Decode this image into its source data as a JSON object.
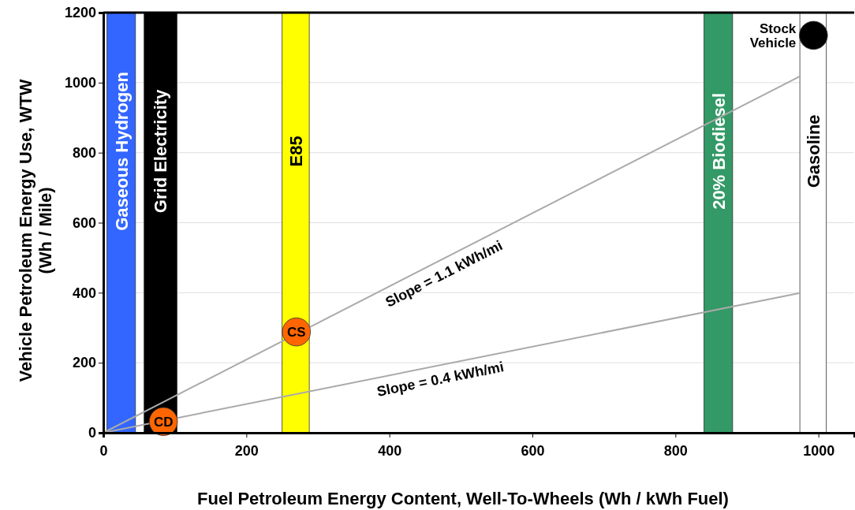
{
  "chart_data": {
    "type": "scatter",
    "xlabel": "Fuel Petroleum Energy Content, Well-To-Wheels (Wh / kWh Fuel)",
    "ylabel": "Vehicle Petroleum Energy Use, WTW\n(Wh / Mile)",
    "xlim": [
      0,
      1050
    ],
    "xticks": [
      0,
      200,
      400,
      600,
      800,
      1000
    ],
    "ylim": [
      0,
      1200
    ],
    "yticks": [
      0,
      200,
      400,
      600,
      800,
      1000,
      1200
    ],
    "grid": "y",
    "bands": [
      {
        "axis": "x",
        "from": 5,
        "to": 45,
        "label": "Gaseous Hydrogen",
        "color": "#3366ff"
      },
      {
        "axis": "x",
        "from": 57,
        "to": 103,
        "label": "Grid Electricity",
        "color": "#000000"
      },
      {
        "axis": "x",
        "from": 250,
        "to": 288,
        "label": "E85",
        "color": "#ffff00"
      },
      {
        "axis": "x",
        "from": 840,
        "to": 880,
        "label": "20% Biodiesel",
        "color": "#339966"
      },
      {
        "axis": "x",
        "from": 974,
        "to": 1011,
        "label": "Gasoline",
        "color": "#ffffff"
      }
    ],
    "series": [
      {
        "type": "line",
        "name": "Slope = 1.1 kWh/mi",
        "color": "#aaaaaa",
        "x": [
          0,
          974
        ],
        "values": [
          0,
          1018
        ]
      },
      {
        "type": "line",
        "name": "Slope = 0.4 kWh/mi",
        "color": "#aaaaaa",
        "x": [
          0,
          974
        ],
        "values": [
          0,
          399
        ]
      },
      {
        "marker": "circle",
        "x": [
          84,
          270
        ],
        "values": [
          32,
          288
        ],
        "color": "#ff6600"
      },
      {
        "marker": "circle",
        "name": "Stock Vehicle",
        "x": [
          993
        ],
        "values": [
          1135
        ],
        "color": "#000000"
      }
    ],
    "annotations": [
      {
        "text": "CD",
        "x": 84,
        "y": 32
      },
      {
        "text": "CS",
        "x": 270,
        "y": 288
      }
    ]
  }
}
